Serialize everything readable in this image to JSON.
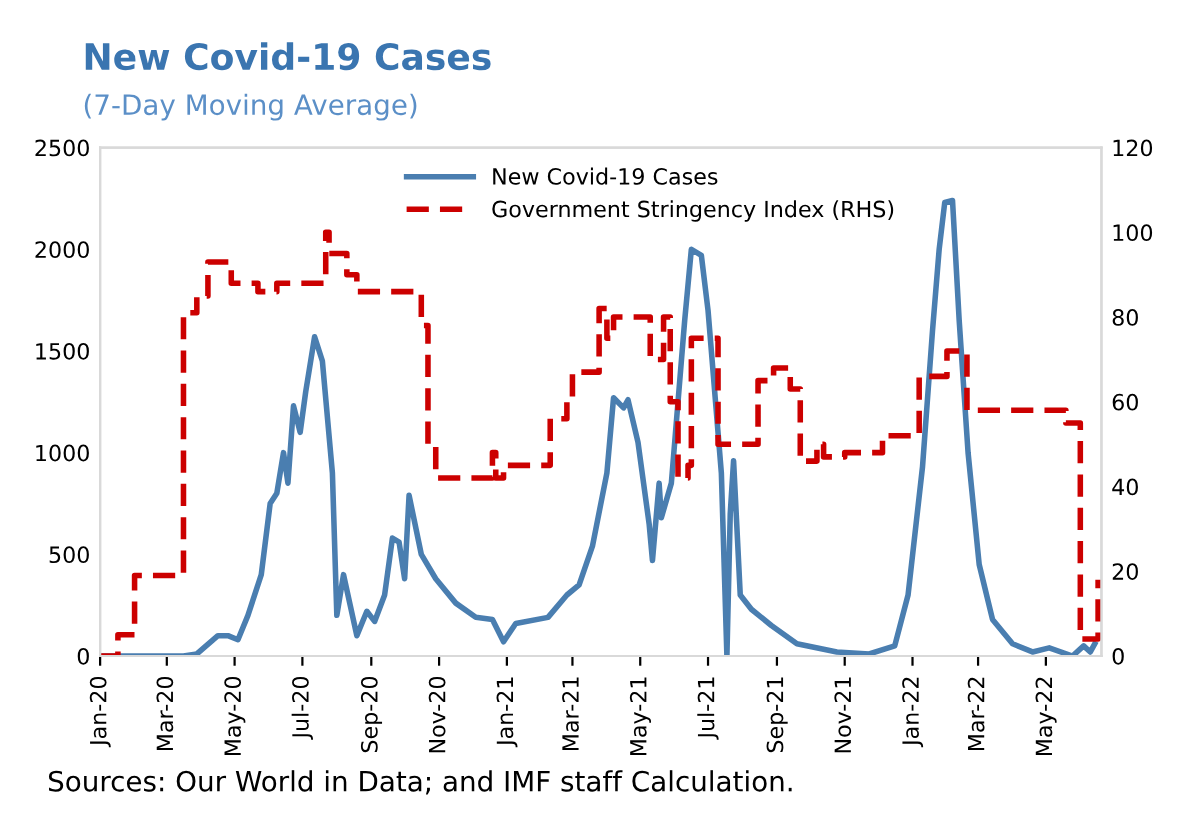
{
  "chart_data": {
    "type": "line",
    "title": "New Covid-19 Cases",
    "subtitle": "(7-Day Moving Average)",
    "annotations": [
      "Sources: Our World in Data; and IMF staff Calculation."
    ],
    "xlim": [
      "2020-01-01",
      "2022-06-20"
    ],
    "xticks": [
      {
        "value": "2020-01",
        "label": "Jan-20"
      },
      {
        "value": "2020-03",
        "label": "Mar-20"
      },
      {
        "value": "2020-05",
        "label": "May-20"
      },
      {
        "value": "2020-07",
        "label": "Jul-20"
      },
      {
        "value": "2020-09",
        "label": "Sep-20"
      },
      {
        "value": "2020-11",
        "label": "Nov-20"
      },
      {
        "value": "2021-01",
        "label": "Jan-21"
      },
      {
        "value": "2021-03",
        "label": "Mar-21"
      },
      {
        "value": "2021-05",
        "label": "May-21"
      },
      {
        "value": "2021-07",
        "label": "Jul-21"
      },
      {
        "value": "2021-09",
        "label": "Sep-21"
      },
      {
        "value": "2021-11",
        "label": "Nov-21"
      },
      {
        "value": "2022-01",
        "label": "Jan-22"
      },
      {
        "value": "2022-03",
        "label": "Mar-22"
      },
      {
        "value": "2022-05",
        "label": "May-22"
      }
    ],
    "ylim": [
      0,
      2500
    ],
    "yticks": [
      0,
      500,
      1000,
      1500,
      2000,
      2500
    ],
    "y2lim": [
      0,
      120
    ],
    "y2ticks": [
      0,
      20,
      40,
      60,
      80,
      100,
      120
    ],
    "legend": "top",
    "grid": false,
    "series": [
      {
        "name": "New Covid-19 Cases",
        "color": "#4a7eb0",
        "line_style": "solid",
        "x": [
          "2020-01-01",
          "2020-03-16",
          "2020-03-28",
          "2020-04-16",
          "2020-04-25",
          "2020-05-04",
          "2020-05-13",
          "2020-05-25",
          "2020-06-02",
          "2020-06-08",
          "2020-06-14",
          "2020-06-18",
          "2020-06-23",
          "2020-06-29",
          "2020-07-04",
          "2020-07-12",
          "2020-07-19",
          "2020-07-28",
          "2020-08-01",
          "2020-08-07",
          "2020-08-13",
          "2020-08-19",
          "2020-08-28",
          "2020-09-04",
          "2020-09-13",
          "2020-09-20",
          "2020-09-26",
          "2020-10-01",
          "2020-10-05",
          "2020-10-16",
          "2020-10-29",
          "2020-11-16",
          "2020-12-04",
          "2020-12-19",
          "2020-12-29",
          "2021-01-09",
          "2021-02-07",
          "2021-02-24",
          "2021-03-07",
          "2021-03-19",
          "2021-04-01",
          "2021-04-07",
          "2021-04-16",
          "2021-04-20",
          "2021-04-29",
          "2021-05-09",
          "2021-05-12",
          "2021-05-18",
          "2021-05-20",
          "2021-05-29",
          "2021-06-10",
          "2021-06-16",
          "2021-06-25",
          "2021-07-01",
          "2021-07-13",
          "2021-07-18",
          "2021-07-21",
          "2021-07-24",
          "2021-07-30",
          "2021-08-09",
          "2021-08-27",
          "2021-09-19",
          "2021-10-25",
          "2021-11-23",
          "2021-12-16",
          "2021-12-28",
          "2022-01-10",
          "2022-01-19",
          "2022-01-25",
          "2022-01-30",
          "2022-02-06",
          "2022-02-12",
          "2022-02-20",
          "2022-03-02",
          "2022-03-14",
          "2022-04-01",
          "2022-04-19",
          "2022-05-04",
          "2022-05-25",
          "2022-06-04",
          "2022-06-10",
          "2022-06-14"
        ],
        "values": [
          0,
          0,
          10,
          100,
          100,
          80,
          200,
          400,
          750,
          800,
          1000,
          850,
          1230,
          1100,
          1300,
          1570,
          1450,
          900,
          200,
          400,
          250,
          100,
          220,
          170,
          300,
          580,
          560,
          380,
          790,
          500,
          380,
          260,
          190,
          180,
          70,
          160,
          190,
          300,
          350,
          540,
          900,
          1270,
          1220,
          1260,
          1050,
          650,
          470,
          850,
          680,
          850,
          1650,
          2000,
          1970,
          1700,
          900,
          0,
          700,
          960,
          300,
          230,
          150,
          60,
          20,
          10,
          50,
          300,
          930,
          1600,
          2000,
          2230,
          2240,
          1650,
          1000,
          450,
          180,
          60,
          20,
          40,
          0,
          50,
          20,
          60
        ]
      },
      {
        "name": "Government Stringency Index (RHS)",
        "color": "#cc0000",
        "type": "step",
        "axis": "y2",
        "line_style": "dashed",
        "x": [
          "2020-01-01",
          "2020-01-17",
          "2020-02-01",
          "2020-03-16",
          "2020-03-28",
          "2020-04-07",
          "2020-04-28",
          "2020-05-22",
          "2020-06-08",
          "2020-07-22",
          "2020-07-25",
          "2020-08-10",
          "2020-08-19",
          "2020-10-16",
          "2020-10-22",
          "2020-10-29",
          "2020-12-19",
          "2020-12-22",
          "2020-12-29",
          "2021-01-15",
          "2021-02-09",
          "2021-02-24",
          "2021-03-01",
          "2021-03-25",
          "2021-04-01",
          "2021-04-07",
          "2021-05-10",
          "2021-05-22",
          "2021-05-28",
          "2021-06-04",
          "2021-06-13",
          "2021-06-16",
          "2021-07-10",
          "2021-08-15",
          "2021-08-29",
          "2021-09-13",
          "2021-09-22",
          "2021-10-07",
          "2021-10-13",
          "2021-11-01",
          "2021-12-05",
          "2022-01-07",
          "2022-02-01",
          "2022-02-19",
          "2022-05-19",
          "2022-06-01",
          "2022-06-17"
        ],
        "values": [
          0,
          5,
          19,
          81,
          85,
          93,
          88,
          86,
          88,
          100,
          95,
          90,
          86,
          78,
          50,
          42,
          48,
          42,
          45,
          45,
          56,
          60,
          67,
          82,
          75,
          80,
          70,
          80,
          60,
          42,
          45,
          75,
          50,
          65,
          68,
          63,
          46,
          50,
          47,
          48,
          52,
          66,
          72,
          58,
          55,
          4,
          18
        ]
      }
    ]
  }
}
